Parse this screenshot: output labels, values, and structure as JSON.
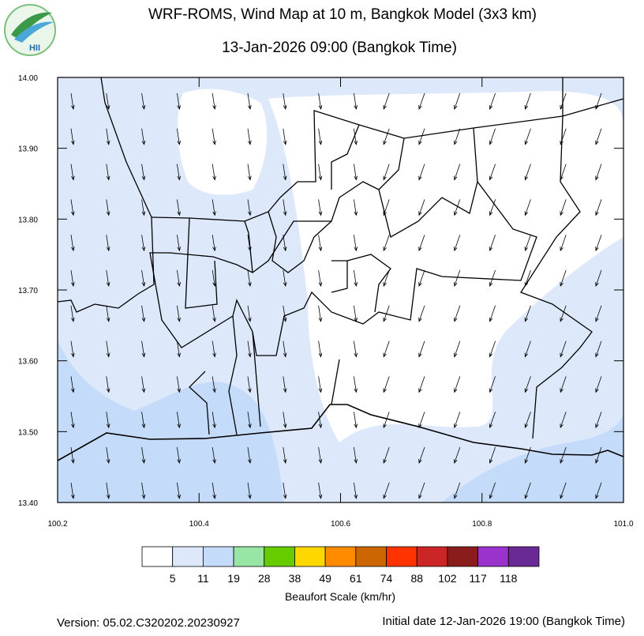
{
  "header": {
    "title": "WRF-ROMS, Wind Map at 10 m, Bangkok Model (3x3 km)",
    "subtitle": "13-Jan-2026 09:00 (Bangkok Time)",
    "logo": "HII"
  },
  "map": {
    "xlim": [
      100.2,
      101.0
    ],
    "ylim": [
      13.4,
      14.0
    ],
    "xticks": [
      100.2,
      100.4,
      100.6,
      100.8,
      {
        "value": 101.0,
        "label": "101.0"
      }
    ],
    "yticks": [
      {
        "value": 13.4,
        "label": "13.40"
      },
      {
        "value": 13.5,
        "label": "13.50"
      },
      {
        "value": 13.6,
        "label": "13.60"
      },
      {
        "value": 13.7,
        "label": "13.70"
      },
      {
        "value": 13.8,
        "label": "13.80"
      },
      {
        "value": 13.9,
        "label": "13.90"
      },
      {
        "value": 14.0,
        "label": "14.00"
      }
    ]
  },
  "colorbar": {
    "title": "Beaufort Scale (km/hr)",
    "colors": [
      "#ffffff",
      "#dde9fb",
      "#c4dbf9",
      "#98e6a6",
      "#66cc00",
      "#ffd700",
      "#ff8c00",
      "#cc6600",
      "#ff3300",
      "#cc2525",
      "#8b1c1c",
      "#9a33cc",
      "#6a2a96"
    ],
    "labels": [
      5,
      11,
      19,
      28,
      38,
      49,
      61,
      74,
      88,
      102,
      117,
      118
    ]
  },
  "footer": {
    "version": "Version: 05.02.C320202.20230927",
    "initial_date": "Initial date 12-Jan-2026 19:00 (Bangkok Time)"
  }
}
